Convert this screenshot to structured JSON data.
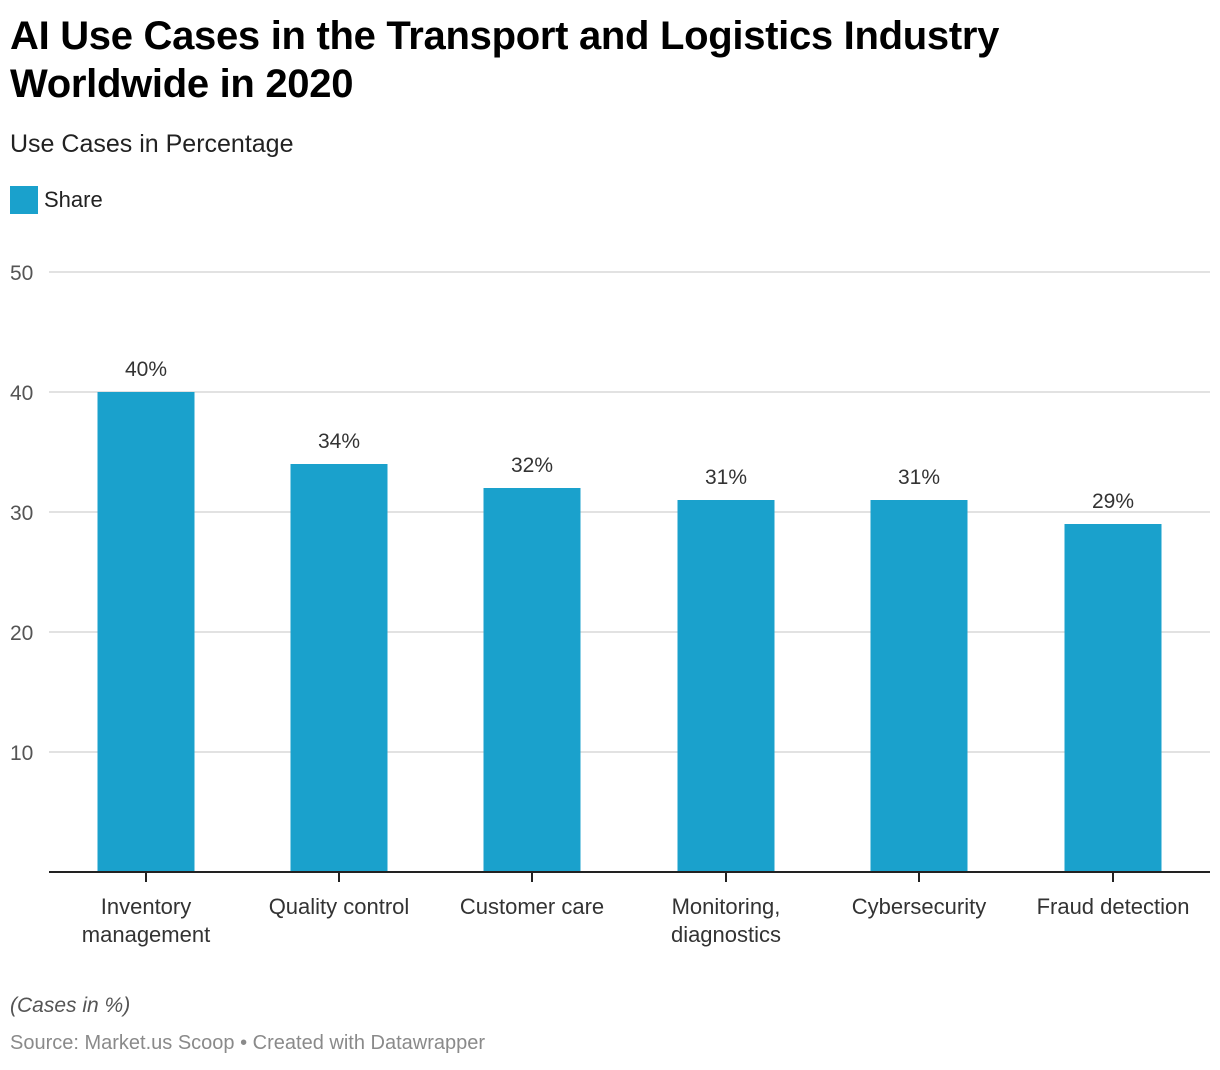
{
  "header": {
    "title": "AI Use Cases in the Transport and Logistics Industry Worldwide in 2020",
    "subtitle": "Use Cases in Percentage"
  },
  "legend": {
    "label": "Share",
    "color": "#1aa1cc"
  },
  "footer": {
    "notes": "(Cases in %)",
    "source": "Source: Market.us Scoop • Created with Datawrapper"
  },
  "chart_data": {
    "type": "bar",
    "title": "AI Use Cases in the Transport and Logistics Industry Worldwide in 2020",
    "subtitle": "Use Cases in Percentage",
    "xlabel": "",
    "ylabel": "",
    "categories": [
      [
        "Inventory",
        "management"
      ],
      [
        "Quality control"
      ],
      [
        "Customer care"
      ],
      [
        "Monitoring,",
        "diagnostics"
      ],
      [
        "Cybersecurity"
      ],
      [
        "Fraud detection"
      ]
    ],
    "series": [
      {
        "name": "Share",
        "color": "#1aa1cc",
        "values": [
          40,
          34,
          32,
          31,
          31,
          29
        ]
      }
    ],
    "value_labels": [
      "40%",
      "34%",
      "32%",
      "31%",
      "31%",
      "29%"
    ],
    "ylim": [
      0,
      50
    ],
    "yticks": [
      10,
      20,
      30,
      40,
      50
    ],
    "grid": true,
    "legend_position": "top-left"
  }
}
